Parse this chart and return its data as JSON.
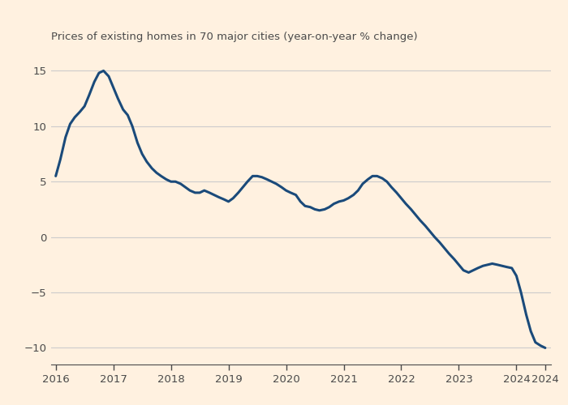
{
  "title": "Prices of existing homes in 70 major cities (year-on-year % change)",
  "background_color": "#FFF1E0",
  "plot_bg_color": "#FFF1E0",
  "line_color": "#1a4a7a",
  "title_color": "#4a4a4a",
  "tick_color": "#4a4a4a",
  "grid_color": "#cccccc",
  "ylim": [
    -11.5,
    17
  ],
  "yticks": [
    -10,
    -5,
    0,
    5,
    10,
    15
  ],
  "x_data": [
    2016.0,
    2016.08,
    2016.17,
    2016.25,
    2016.33,
    2016.42,
    2016.5,
    2016.58,
    2016.67,
    2016.75,
    2016.83,
    2016.92,
    2017.0,
    2017.08,
    2017.17,
    2017.25,
    2017.33,
    2017.42,
    2017.5,
    2017.58,
    2017.67,
    2017.75,
    2017.83,
    2017.92,
    2018.0,
    2018.08,
    2018.17,
    2018.25,
    2018.33,
    2018.42,
    2018.5,
    2018.58,
    2018.67,
    2018.75,
    2018.83,
    2018.92,
    2019.0,
    2019.08,
    2019.17,
    2019.25,
    2019.33,
    2019.42,
    2019.5,
    2019.58,
    2019.67,
    2019.75,
    2019.83,
    2019.92,
    2020.0,
    2020.08,
    2020.17,
    2020.25,
    2020.33,
    2020.42,
    2020.5,
    2020.58,
    2020.67,
    2020.75,
    2020.83,
    2020.92,
    2021.0,
    2021.08,
    2021.17,
    2021.25,
    2021.33,
    2021.42,
    2021.5,
    2021.58,
    2021.67,
    2021.75,
    2021.83,
    2021.92,
    2022.0,
    2022.08,
    2022.17,
    2022.25,
    2022.33,
    2022.42,
    2022.5,
    2022.58,
    2022.67,
    2022.75,
    2022.83,
    2022.92,
    2023.0,
    2023.08,
    2023.17,
    2023.25,
    2023.33,
    2023.42,
    2023.5,
    2023.58,
    2023.67,
    2023.75,
    2023.83,
    2023.92,
    2024.0,
    2024.08,
    2024.17,
    2024.25,
    2024.33,
    2024.42,
    2024.5
  ],
  "y_data": [
    5.5,
    7.0,
    9.0,
    10.2,
    10.8,
    11.3,
    11.8,
    12.8,
    14.0,
    14.8,
    15.0,
    14.5,
    13.5,
    12.5,
    11.5,
    11.0,
    10.0,
    8.5,
    7.5,
    6.8,
    6.2,
    5.8,
    5.5,
    5.2,
    5.0,
    5.0,
    4.8,
    4.5,
    4.2,
    4.0,
    4.0,
    4.2,
    4.0,
    3.8,
    3.6,
    3.4,
    3.2,
    3.5,
    4.0,
    4.5,
    5.0,
    5.5,
    5.5,
    5.4,
    5.2,
    5.0,
    4.8,
    4.5,
    4.2,
    4.0,
    3.8,
    3.2,
    2.8,
    2.7,
    2.5,
    2.4,
    2.5,
    2.7,
    3.0,
    3.2,
    3.3,
    3.5,
    3.8,
    4.2,
    4.8,
    5.2,
    5.5,
    5.5,
    5.3,
    5.0,
    4.5,
    4.0,
    3.5,
    3.0,
    2.5,
    2.0,
    1.5,
    1.0,
    0.5,
    0.0,
    -0.5,
    -1.0,
    -1.5,
    -2.0,
    -2.5,
    -3.0,
    -3.2,
    -3.0,
    -2.8,
    -2.6,
    -2.5,
    -2.4,
    -2.5,
    -2.6,
    -2.7,
    -2.8,
    -3.5,
    -5.0,
    -7.0,
    -8.5,
    -9.5,
    -9.8,
    -10.0
  ],
  "xtick_positions": [
    2016,
    2017,
    2018,
    2019,
    2020,
    2021,
    2022,
    2023,
    2024,
    2024.5
  ],
  "xtick_labels": [
    "2016",
    "2017",
    "2018",
    "2019",
    "2020",
    "2021",
    "2022",
    "2023",
    "2024",
    "2024"
  ],
  "line_width": 2.2
}
